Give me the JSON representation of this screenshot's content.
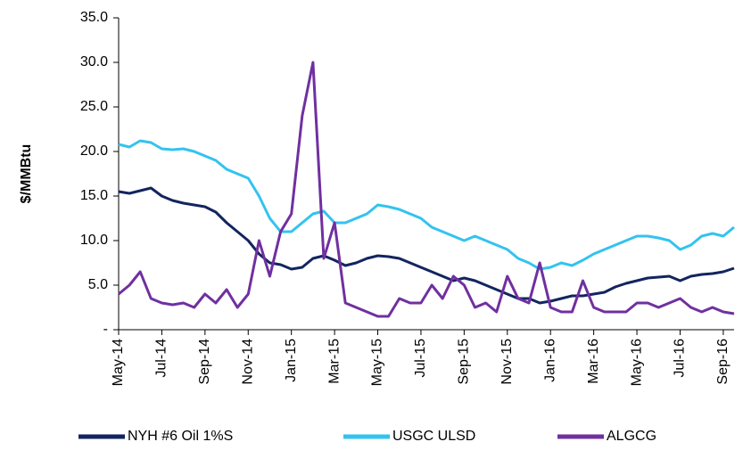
{
  "chart_data": {
    "type": "line",
    "y_label": "$/MMBtu",
    "categories": [
      "May-14",
      null,
      null,
      null,
      "Jul-14",
      null,
      null,
      null,
      "Sep-14",
      null,
      null,
      null,
      "Nov-14",
      null,
      null,
      null,
      "Jan-15",
      null,
      null,
      null,
      "Mar-15",
      null,
      null,
      null,
      "May-15",
      null,
      null,
      null,
      "Jul-15",
      null,
      null,
      null,
      "Sep-15",
      null,
      null,
      null,
      "Nov-15",
      null,
      null,
      null,
      "Jan-16",
      null,
      null,
      null,
      "Mar-16",
      null,
      null,
      null,
      "May-16",
      null,
      null,
      null,
      "Jul-16",
      null,
      null,
      null,
      "Sep-16",
      null
    ],
    "series": [
      {
        "name": "NYH #6 Oil 1%S",
        "color": "#12255f",
        "values": [
          15.5,
          15.3,
          15.6,
          15.9,
          15.0,
          14.5,
          14.2,
          14.0,
          13.8,
          13.2,
          12.0,
          11.0,
          10.0,
          8.5,
          7.5,
          7.3,
          6.8,
          7.0,
          8.0,
          8.3,
          7.8,
          7.2,
          7.5,
          8.0,
          8.3,
          8.2,
          8.0,
          7.5,
          7.0,
          6.5,
          6.0,
          5.5,
          5.8,
          5.5,
          5.0,
          4.5,
          4.0,
          3.5,
          3.5,
          3.0,
          3.2,
          3.5,
          3.8,
          3.8,
          4.0,
          4.2,
          4.8,
          5.2,
          5.5,
          5.8,
          5.9,
          6.0,
          5.5,
          6.0,
          6.2,
          6.3,
          6.5,
          6.9
        ]
      },
      {
        "name": "USGC ULSD",
        "color": "#33c3ef",
        "values": [
          20.8,
          20.5,
          21.2,
          21.0,
          20.3,
          20.2,
          20.3,
          20.0,
          19.5,
          19.0,
          18.0,
          17.5,
          17.0,
          15.0,
          12.5,
          11.0,
          11.0,
          12.0,
          13.0,
          13.3,
          12.0,
          12.0,
          12.5,
          13.0,
          14.0,
          13.8,
          13.5,
          13.0,
          12.5,
          11.5,
          11.0,
          10.5,
          10.0,
          10.5,
          10.0,
          9.5,
          9.0,
          8.0,
          7.5,
          6.8,
          7.0,
          7.5,
          7.2,
          7.8,
          8.5,
          9.0,
          9.5,
          10.0,
          10.5,
          10.5,
          10.3,
          10.0,
          9.0,
          9.5,
          10.5,
          10.8,
          10.5,
          11.5
        ]
      },
      {
        "name": "ALGCG",
        "color": "#7030a0",
        "values": [
          4.0,
          5.0,
          6.5,
          3.5,
          3.0,
          2.8,
          3.0,
          2.5,
          4.0,
          3.0,
          4.5,
          2.5,
          4.0,
          10.0,
          6.0,
          11.0,
          13.0,
          24.0,
          30.0,
          8.0,
          12.0,
          3.0,
          2.5,
          2.0,
          1.5,
          1.5,
          3.5,
          3.0,
          3.0,
          5.0,
          3.5,
          6.0,
          5.0,
          2.5,
          3.0,
          2.0,
          6.0,
          3.5,
          3.0,
          7.5,
          2.5,
          2.0,
          2.0,
          5.5,
          2.5,
          2.0,
          2.0,
          2.0,
          3.0,
          3.0,
          2.5,
          3.0,
          3.5,
          2.5,
          2.0,
          2.5,
          2.0,
          1.8
        ]
      }
    ],
    "ylim": [
      0,
      35
    ],
    "yticks": [
      {
        "value": 0,
        "label": "-"
      },
      {
        "value": 5,
        "label": "5.0"
      },
      {
        "value": 10,
        "label": "10.0"
      },
      {
        "value": 15,
        "label": "15.0"
      },
      {
        "value": 20,
        "label": "20.0"
      },
      {
        "value": 25,
        "label": "25.0"
      },
      {
        "value": 30,
        "label": "30.0"
      },
      {
        "value": 35,
        "label": "35.0"
      }
    ],
    "legend": "bottom"
  }
}
